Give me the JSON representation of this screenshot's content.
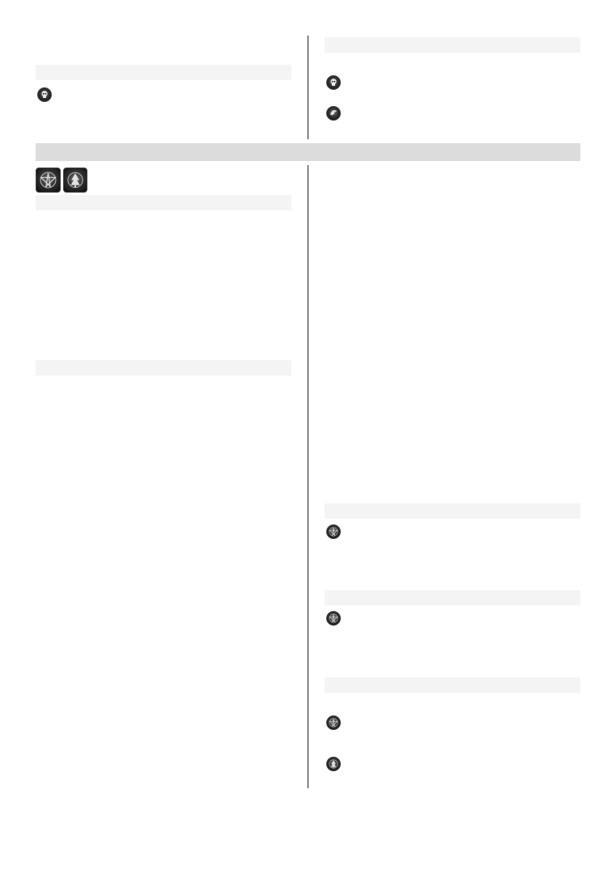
{
  "page": {
    "background": "#ffffff",
    "bar_color": "#f4f4f4",
    "banner_color": "#dcdcdc",
    "divider_color": "#222222"
  },
  "icons": {
    "skull": "skull-icon",
    "hand": "hand-icon",
    "pentagram": "pentagram-icon",
    "tree": "tree-icon"
  }
}
